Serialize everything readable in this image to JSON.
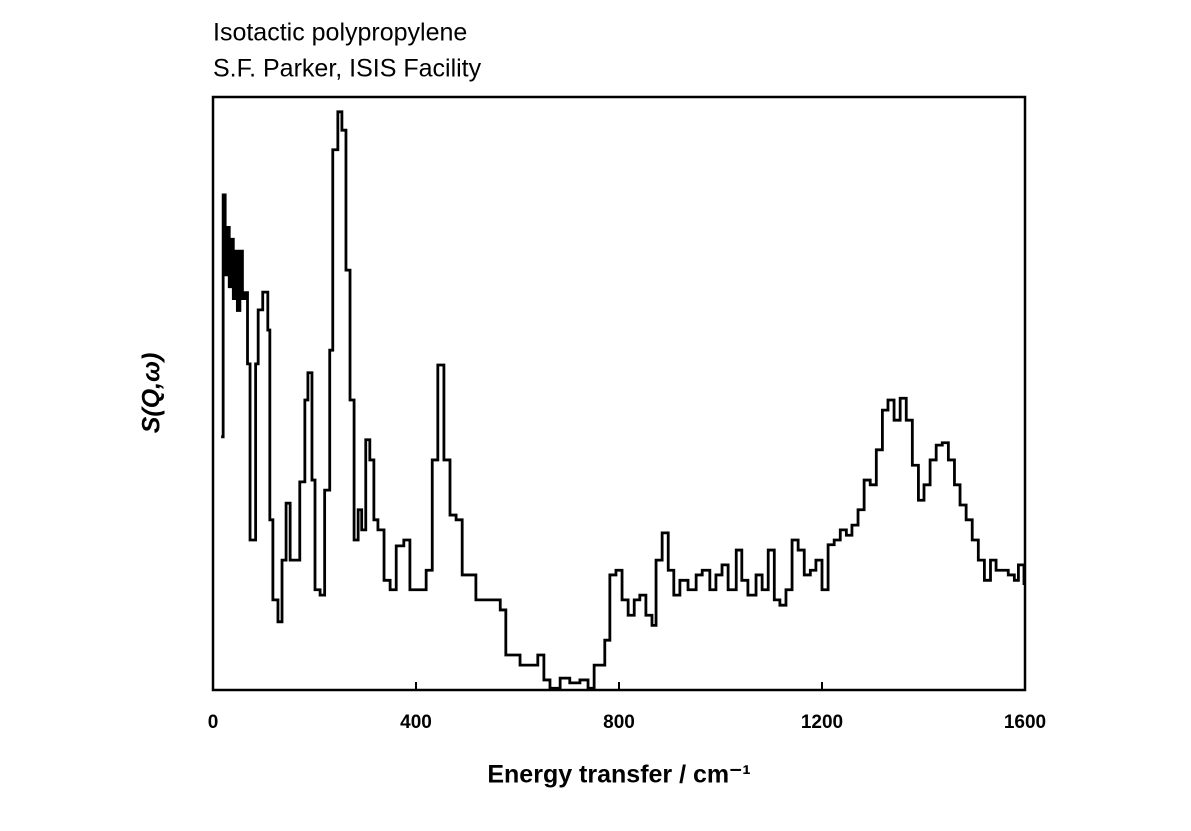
{
  "chart_data": {
    "type": "line",
    "title": "Isotactic polypropylene",
    "subtitle": "S.F. Parker, ISIS Facility",
    "xlabel": "Energy transfer / cm⁻¹",
    "ylabel": "S(Q,ω)",
    "xlim": [
      0,
      1600
    ],
    "xticks": [
      0,
      400,
      800,
      1200,
      1600
    ],
    "ylim": [
      0,
      100
    ],
    "step": true,
    "grid": false,
    "x": [
      16,
      20,
      24,
      28,
      32,
      36,
      40,
      44,
      48,
      53,
      58,
      63,
      68,
      73,
      79,
      84,
      89,
      98,
      108,
      112,
      118,
      128,
      136,
      144,
      152,
      164,
      171,
      181,
      187,
      195,
      201,
      211,
      220,
      230,
      236,
      246,
      254,
      262,
      270,
      278,
      286,
      293,
      301,
      309,
      317,
      325,
      337,
      349,
      361,
      376,
      388,
      408,
      420,
      432,
      443,
      455,
      467,
      479,
      491,
      506,
      518,
      546,
      566,
      577,
      593,
      605,
      625,
      640,
      652,
      664,
      684,
      703,
      723,
      739,
      751,
      762,
      772,
      782,
      794,
      806,
      818,
      830,
      841,
      853,
      865,
      873,
      885,
      897,
      908,
      920,
      936,
      952,
      964,
      979,
      991,
      1003,
      1015,
      1031,
      1042,
      1054,
      1070,
      1082,
      1094,
      1106,
      1117,
      1129,
      1141,
      1153,
      1165,
      1177,
      1188,
      1200,
      1212,
      1224,
      1236,
      1248,
      1259,
      1271,
      1283,
      1295,
      1307,
      1319,
      1330,
      1342,
      1354,
      1366,
      1378,
      1390,
      1401,
      1413,
      1425,
      1437,
      1449,
      1461,
      1472,
      1484,
      1496,
      1508,
      1520,
      1532,
      1543,
      1555,
      1567,
      1579,
      1587,
      1598
    ],
    "series": [
      {
        "name": "Isotactic polypropylene",
        "color": "#000000",
        "values": [
          42.7,
          83.5,
          70,
          78,
          68,
          76,
          66,
          74,
          64,
          74,
          66,
          67,
          55,
          25.3,
          25.3,
          55,
          64.1,
          67.1,
          60.7,
          28.7,
          15.2,
          11.5,
          21.9,
          31.5,
          21.9,
          21.9,
          35.1,
          48.9,
          53.5,
          35.4,
          16.9,
          16.0,
          33.7,
          57.3,
          91.1,
          97.5,
          94.4,
          70.8,
          48.9,
          25.3,
          30.4,
          27.0,
          42.2,
          38.8,
          28.7,
          27.0,
          18.5,
          16.9,
          24.3,
          25.3,
          16.9,
          16.9,
          20.2,
          38.8,
          54.8,
          38.8,
          29.5,
          28.7,
          19.4,
          19.4,
          15.2,
          15.2,
          13.5,
          5.9,
          5.9,
          4.2,
          4.2,
          5.9,
          1.7,
          0.3,
          2.0,
          1.2,
          1.7,
          0.3,
          4.2,
          4.2,
          8.4,
          19.4,
          20.2,
          15.2,
          12.6,
          15.2,
          16.0,
          12.6,
          10.9,
          21.9,
          26.5,
          20.2,
          16.0,
          18.5,
          16.9,
          19.4,
          20.2,
          16.9,
          19.4,
          21.1,
          16.9,
          23.6,
          18.5,
          16.0,
          19.4,
          16.9,
          23.6,
          15.2,
          14.3,
          16.9,
          25.3,
          23.6,
          19.4,
          20.2,
          21.9,
          16.9,
          24.5,
          25.3,
          27.0,
          26.1,
          27.8,
          30.4,
          35.4,
          34.6,
          40.5,
          47.2,
          48.9,
          45.5,
          49.2,
          45.5,
          37.9,
          32.0,
          34.6,
          38.8,
          41.3,
          41.7,
          38.8,
          34.6,
          31.2,
          28.7,
          25.3,
          21.9,
          18.5,
          21.9,
          20.2,
          20.2,
          19.4,
          18.5,
          21.1,
          17.7
        ]
      }
    ]
  }
}
